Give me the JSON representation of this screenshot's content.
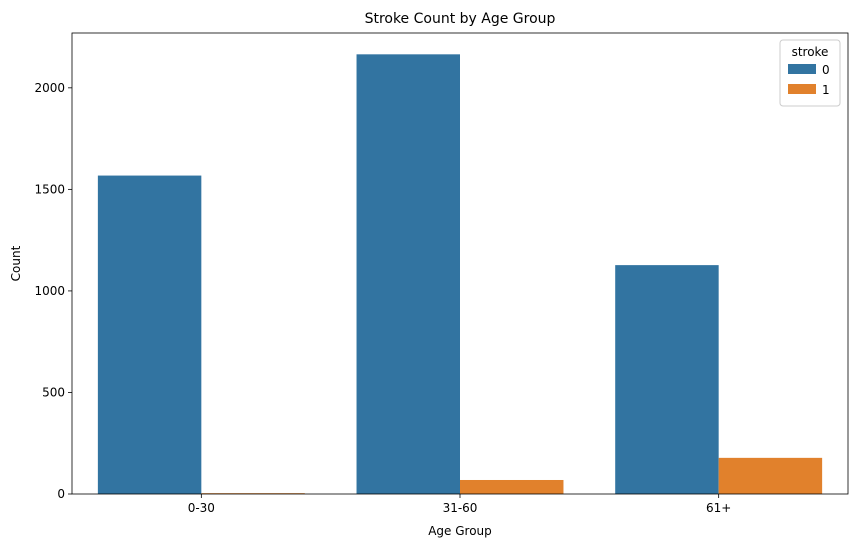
{
  "chart_data": {
    "type": "bar",
    "title": "Stroke Count by Age Group",
    "xlabel": "Age Group",
    "ylabel": "Count",
    "categories": [
      "0-30",
      "31-60",
      "61+"
    ],
    "series": [
      {
        "name": "0",
        "values": [
          1568,
          2165,
          1127
        ],
        "color": "#3274a1"
      },
      {
        "name": "1",
        "values": [
          4,
          69,
          178
        ],
        "color": "#e1812c"
      }
    ],
    "ylim": [
      0,
      2270
    ],
    "yticks": [
      0,
      500,
      1000,
      1500,
      2000
    ],
    "grid": false,
    "legend": {
      "title": "stroke",
      "placement": "top-right"
    }
  }
}
